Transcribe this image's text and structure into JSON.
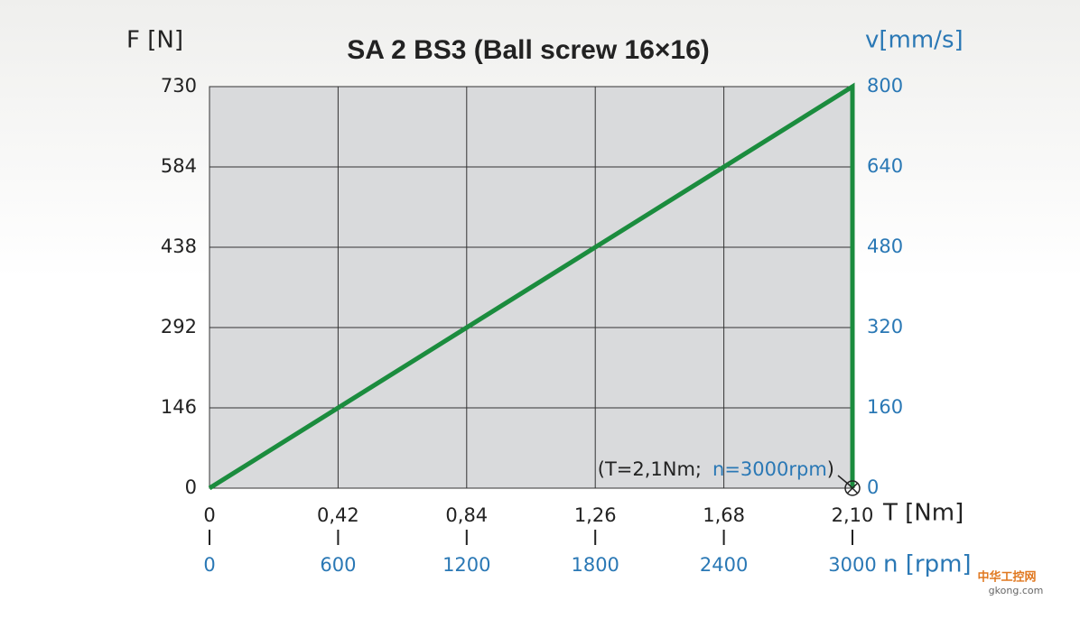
{
  "chart_data": {
    "type": "line",
    "title": "SA 2   BS3 (Ball screw 16×16)",
    "ylabel": "F [N]",
    "y2label": "v[mm/s]",
    "xlabel": "T [Nm]",
    "x2label": "n [rpm]",
    "xlim": [
      0,
      2.1
    ],
    "xticks": [
      0,
      {
        "value": 0.42,
        "label": "0,42"
      },
      {
        "value": 0.84,
        "label": "0,84"
      },
      {
        "value": 1.26,
        "label": "1,26"
      },
      {
        "value": 1.68,
        "label": "1,68"
      },
      {
        "value": 2.1,
        "label": "2,10"
      }
    ],
    "x2lim": [
      0,
      3000
    ],
    "x2ticks": [
      0,
      600,
      1200,
      1800,
      2400,
      3000
    ],
    "ylim": [
      0,
      730
    ],
    "yticks": [
      0,
      146,
      292,
      438,
      584,
      730
    ],
    "y2lim": [
      0,
      800
    ],
    "y2ticks": [
      0,
      160,
      320,
      480,
      640,
      800
    ],
    "grid": true,
    "series": [
      {
        "color": "#1b8c3e",
        "x": [
          0,
          2.1,
          2.1
        ],
        "values": [
          0,
          730,
          0
        ]
      }
    ],
    "annotations": [
      "(T=2,1Nm;",
      "n=3000rpm",
      ")"
    ],
    "watermark": [
      "中华工控网",
      "gkong.com"
    ]
  }
}
